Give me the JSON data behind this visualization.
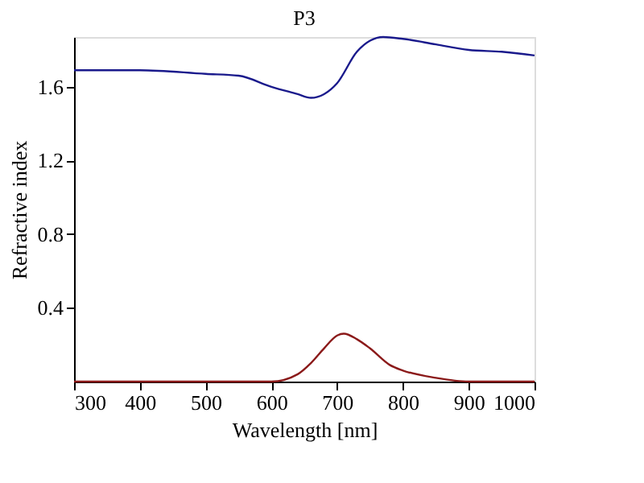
{
  "chart_data": {
    "type": "line",
    "title": "P3",
    "xlabel": "Wavelength [nm]",
    "ylabel": "Refractive index",
    "xlim": [
      300,
      1000
    ],
    "xticks": [
      300,
      400,
      500,
      600,
      700,
      800,
      900,
      1000
    ],
    "ylim": [
      0,
      1.87
    ],
    "yticks": [
      0.4,
      0.8,
      1.2,
      1.6
    ],
    "grid": false,
    "series": [
      {
        "color": "#1a1a8c",
        "x": [
          300,
          400,
          500,
          550,
          600,
          640,
          660,
          680,
          700,
          730,
          750,
          770,
          800,
          850,
          900,
          950,
          1000
        ],
        "values": [
          1.69,
          1.69,
          1.67,
          1.66,
          1.6,
          1.56,
          1.54,
          1.56,
          1.62,
          1.79,
          1.85,
          1.87,
          1.86,
          1.83,
          1.8,
          1.79,
          1.77
        ]
      },
      {
        "color": "#8b1a1a",
        "x": [
          300,
          600,
          640,
          660,
          680,
          700,
          710,
          730,
          750,
          780,
          800,
          850,
          900,
          1000
        ],
        "values": [
          0,
          0,
          0.04,
          0.1,
          0.18,
          0.25,
          0.26,
          0.23,
          0.18,
          0.09,
          0.06,
          0.02,
          0,
          0
        ]
      }
    ]
  }
}
